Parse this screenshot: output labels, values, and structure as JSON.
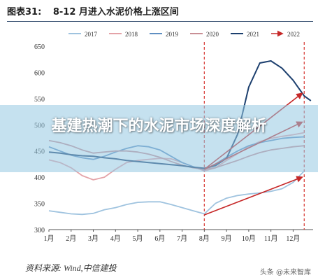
{
  "title_prefix": "图表31:",
  "title_text": "8-12 月进入水泥价格上涨区间",
  "banner_text": "基建热潮下的水泥市场深度解析",
  "source_text": "资料来源: Wind,中信建投",
  "watermark_text": "头条 @未来智库",
  "chart_data": {
    "type": "line",
    "title": "8-12 月进入水泥价格上涨区间",
    "categories": [
      "1月",
      "2月",
      "3月",
      "4月",
      "5月",
      "6月",
      "7月",
      "8月",
      "9月",
      "10月",
      "11月",
      "12月"
    ],
    "ylim": [
      300,
      650
    ],
    "yticks": [
      300,
      350,
      400,
      450,
      500,
      550,
      600,
      650
    ],
    "grid": false,
    "legend_position": "top",
    "series": [
      {
        "name": "2017",
        "color": "#9fc3df",
        "dash": false,
        "points": [
          [
            1,
            336
          ],
          [
            1.5,
            333
          ],
          [
            2,
            330
          ],
          [
            2.5,
            329
          ],
          [
            3,
            331
          ],
          [
            3.5,
            338
          ],
          [
            4,
            342
          ],
          [
            4.5,
            348
          ],
          [
            5,
            352
          ],
          [
            5.5,
            353
          ],
          [
            6,
            353
          ],
          [
            6.5,
            348
          ],
          [
            7,
            342
          ],
          [
            7.5,
            336
          ],
          [
            8,
            330
          ],
          [
            8.5,
            350
          ],
          [
            9,
            360
          ],
          [
            9.5,
            365
          ],
          [
            10,
            368
          ],
          [
            10.5,
            370
          ],
          [
            11,
            373
          ],
          [
            11.5,
            378
          ],
          [
            12,
            390
          ],
          [
            12.5,
            412
          ]
        ]
      },
      {
        "name": "2018",
        "color": "#e4a3a8",
        "dash": false,
        "points": [
          [
            1,
            433
          ],
          [
            1.5,
            428
          ],
          [
            2,
            418
          ],
          [
            2.5,
            403
          ],
          [
            3,
            395
          ],
          [
            3.5,
            400
          ],
          [
            4,
            415
          ],
          [
            4.5,
            428
          ],
          [
            5,
            432
          ],
          [
            5.5,
            434
          ],
          [
            6,
            436
          ],
          [
            6.5,
            435
          ],
          [
            7,
            428
          ],
          [
            7.5,
            420
          ],
          [
            8,
            412
          ],
          [
            8.5,
            418
          ],
          [
            9,
            432
          ],
          [
            9.5,
            445
          ],
          [
            10,
            458
          ],
          [
            10.5,
            468
          ],
          [
            11,
            474
          ],
          [
            11.5,
            478
          ],
          [
            12,
            481
          ],
          [
            12.5,
            485
          ]
        ]
      },
      {
        "name": "2019",
        "color": "#5f8fc2",
        "dash": false,
        "points": [
          [
            1,
            458
          ],
          [
            1.5,
            450
          ],
          [
            2,
            442
          ],
          [
            2.5,
            437
          ],
          [
            3,
            434
          ],
          [
            3.5,
            440
          ],
          [
            4,
            448
          ],
          [
            4.5,
            455
          ],
          [
            5,
            460
          ],
          [
            5.5,
            458
          ],
          [
            6,
            452
          ],
          [
            6.5,
            440
          ],
          [
            7,
            428
          ],
          [
            7.5,
            420
          ],
          [
            8,
            414
          ],
          [
            8.5,
            425
          ],
          [
            9,
            438
          ],
          [
            9.5,
            450
          ],
          [
            10,
            460
          ],
          [
            10.5,
            466
          ],
          [
            11,
            470
          ],
          [
            11.5,
            474
          ],
          [
            12,
            476
          ],
          [
            12.5,
            477
          ]
        ]
      },
      {
        "name": "2020",
        "color": "#c98f95",
        "dash": false,
        "points": [
          [
            1,
            470
          ],
          [
            1.5,
            466
          ],
          [
            2,
            460
          ],
          [
            2.5,
            452
          ],
          [
            3,
            446
          ],
          [
            3.5,
            448
          ],
          [
            4,
            450
          ],
          [
            4.5,
            450
          ],
          [
            5,
            448
          ],
          [
            5.5,
            444
          ],
          [
            6,
            438
          ],
          [
            6.5,
            430
          ],
          [
            7,
            423
          ],
          [
            7.5,
            418
          ],
          [
            8,
            415
          ],
          [
            8.5,
            418
          ],
          [
            9,
            425
          ],
          [
            9.5,
            432
          ],
          [
            10,
            440
          ],
          [
            10.5,
            447
          ],
          [
            11,
            452
          ],
          [
            11.5,
            455
          ],
          [
            12,
            458
          ],
          [
            12.5,
            460
          ]
        ]
      },
      {
        "name": "2021",
        "color": "#1c3f6e",
        "dash": false,
        "points": [
          [
            1,
            448
          ],
          [
            1.5,
            446
          ],
          [
            2,
            443
          ],
          [
            2.5,
            441
          ],
          [
            3,
            440
          ],
          [
            3.5,
            437
          ],
          [
            4,
            435
          ],
          [
            4.5,
            432
          ],
          [
            5,
            430
          ],
          [
            5.5,
            428
          ],
          [
            6,
            426
          ],
          [
            6.5,
            424
          ],
          [
            7,
            422
          ],
          [
            7.5,
            419
          ],
          [
            8,
            417
          ],
          [
            8.5,
            422
          ],
          [
            9,
            436
          ],
          [
            9.5,
            482
          ],
          [
            10,
            572
          ],
          [
            10.5,
            618
          ],
          [
            11,
            622
          ],
          [
            11.5,
            608
          ],
          [
            12,
            585
          ],
          [
            12.5,
            555
          ],
          [
            12.8,
            546
          ]
        ]
      },
      {
        "name": "2022",
        "color": "#c62828",
        "dash": true,
        "points": []
      }
    ],
    "annotation_arrows": [
      {
        "from": [
          8,
          415
        ],
        "to": [
          12.4,
          560
        ]
      },
      {
        "from": [
          8,
          415
        ],
        "to": [
          12.4,
          505
        ]
      },
      {
        "from": [
          8,
          328
        ],
        "to": [
          12.4,
          400
        ]
      }
    ],
    "reference_lines_x": [
      8,
      12.5
    ]
  }
}
